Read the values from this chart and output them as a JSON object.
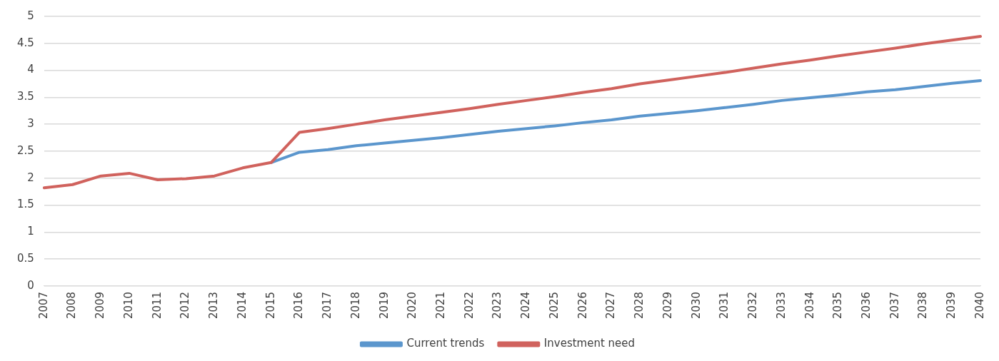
{
  "chart_data": {
    "type": "line",
    "categories": [
      "2007",
      "2008",
      "2009",
      "2010",
      "2011",
      "2012",
      "2013",
      "2014",
      "2015",
      "2016",
      "2017",
      "2018",
      "2019",
      "2020",
      "2021",
      "2022",
      "2023",
      "2024",
      "2025",
      "2026",
      "2027",
      "2028",
      "2029",
      "2030",
      "2031",
      "2032",
      "2033",
      "2034",
      "2035",
      "2036",
      "2037",
      "2038",
      "2039",
      "2040"
    ],
    "series": [
      {
        "name": "Current trends",
        "color": "#5b96cd",
        "values": [
          null,
          null,
          null,
          null,
          null,
          null,
          null,
          null,
          2.29,
          2.48,
          2.53,
          2.6,
          2.65,
          2.7,
          2.75,
          2.81,
          2.87,
          2.92,
          2.97,
          3.03,
          3.08,
          3.15,
          3.2,
          3.25,
          3.31,
          3.37,
          3.44,
          3.49,
          3.54,
          3.6,
          3.64,
          3.7,
          3.76,
          3.81
        ]
      },
      {
        "name": "Investment need",
        "color": "#d0625d",
        "values": [
          1.82,
          1.88,
          2.04,
          2.09,
          1.97,
          1.99,
          2.04,
          2.19,
          2.29,
          2.85,
          2.92,
          3.0,
          3.08,
          3.15,
          3.22,
          3.29,
          3.37,
          3.44,
          3.51,
          3.59,
          3.66,
          3.75,
          3.82,
          3.89,
          3.96,
          4.04,
          4.12,
          4.19,
          4.27,
          4.34,
          4.41,
          4.49,
          4.56,
          4.63
        ]
      }
    ],
    "ylim": [
      0,
      5
    ],
    "yticks": [
      0,
      0.5,
      1,
      1.5,
      2,
      2.5,
      3,
      3.5,
      4,
      4.5,
      5
    ],
    "grid": "y",
    "legend": "bottom",
    "marker": "none",
    "line_style": "solid"
  }
}
